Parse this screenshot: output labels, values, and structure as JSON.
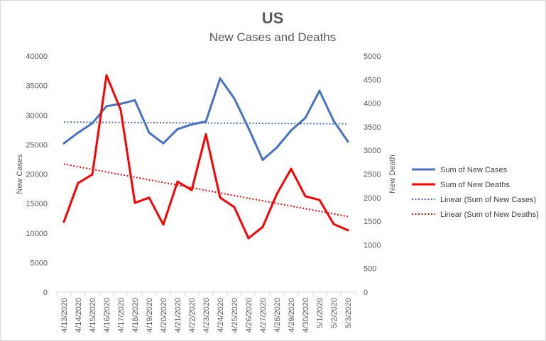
{
  "chart_data": {
    "type": "line",
    "title": "US",
    "subtitle": "New Cases and Deaths",
    "categories": [
      "4/13/2020",
      "4/14/2020",
      "4/15/2020",
      "4/16/2020",
      "4/17/2020",
      "4/18/2020",
      "4/19/2020",
      "4/20/2020",
      "4/21/2020",
      "4/22/2020",
      "4/23/2020",
      "4/24/2020",
      "4/25/2020",
      "4/26/2020",
      "4/27/2020",
      "4/28/2020",
      "4/29/2020",
      "4/30/2020",
      "5/1/2020",
      "5/2/2020",
      "5/3/2020"
    ],
    "series": [
      {
        "name": "Sum of New Cases",
        "axis": "left",
        "color": "#4472C4",
        "values": [
          25200,
          27000,
          28600,
          31500,
          31900,
          32500,
          27000,
          25200,
          27600,
          28400,
          28900,
          36200,
          32800,
          27800,
          22400,
          24500,
          27400,
          29500,
          34100,
          29000,
          25500
        ]
      },
      {
        "name": "Sum of New Deaths",
        "axis": "right",
        "color": "#FF0000",
        "values": [
          1490,
          2310,
          2490,
          4590,
          3860,
          1890,
          2000,
          1430,
          2340,
          2160,
          3340,
          2000,
          1800,
          1140,
          1380,
          2080,
          2610,
          2030,
          1950,
          1440,
          1310
        ]
      }
    ],
    "trendlines": [
      {
        "name": "Linear (Sum of New Cases)",
        "axis": "left",
        "color": "#4472C4",
        "start": 28800,
        "end": 28500
      },
      {
        "name": "Linear (Sum of New Deaths)",
        "axis": "right",
        "color": "#FF0000",
        "start": 2710,
        "end": 1600
      }
    ],
    "y_left": {
      "label": "New Cases",
      "min": 0,
      "max": 40000,
      "step": 5000,
      "ticks": [
        "0",
        "5000",
        "10000",
        "15000",
        "20000",
        "25000",
        "30000",
        "35000",
        "40000"
      ]
    },
    "y_right": {
      "label": "New Death",
      "min": 0,
      "max": 5000,
      "step": 500,
      "ticks": [
        "0",
        "500",
        "1000",
        "1500",
        "2000",
        "2500",
        "3000",
        "3500",
        "4000",
        "4500",
        "5000"
      ]
    },
    "legend": {
      "position": "right",
      "entries": [
        "Sum of New Cases",
        "Sum of New Deaths",
        "Linear (Sum of New Cases)",
        "Linear (Sum of New Deaths)"
      ]
    },
    "gridlines": false
  }
}
